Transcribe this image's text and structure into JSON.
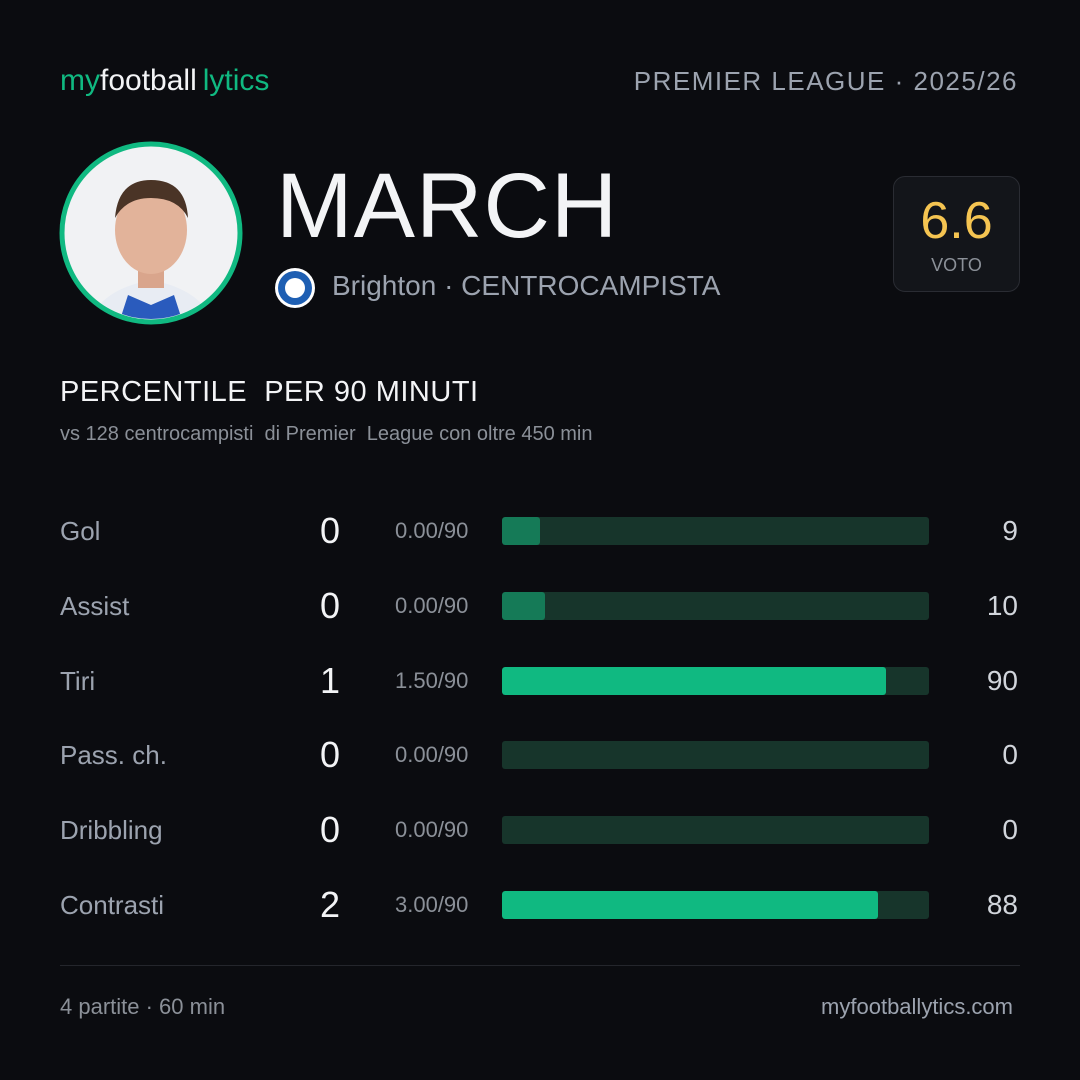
{
  "header": {
    "logo": [
      "my",
      "football",
      "lytics"
    ],
    "league": "PREMIER LEAGUE · 2025/26"
  },
  "player": {
    "name": "MARCH",
    "team": "Brighton",
    "role": "· CENTROCAMPISTA",
    "rating": "6.6",
    "rating_label": "VOTO"
  },
  "section": {
    "title": "PERCENTILE  PER 90 MINUTI",
    "subtitle": "vs 128 centrocampisti  di Premier  League con oltre 450 min"
  },
  "stats": [
    {
      "label": "Gol",
      "count": 0,
      "per90": "0.00/90",
      "percentile": 9,
      "color": "#157a57"
    },
    {
      "label": "Assist",
      "count": 0,
      "per90": "0.00/90",
      "percentile": 10,
      "color": "#157a57"
    },
    {
      "label": "Tiri",
      "count": 1,
      "per90": "1.50/90",
      "percentile": 90,
      "color": "#10b981"
    },
    {
      "label": "Pass. ch.",
      "count": 0,
      "per90": "0.00/90",
      "percentile": 0,
      "color": "#157a57"
    },
    {
      "label": "Dribbling",
      "count": 0,
      "per90": "0.00/90",
      "percentile": 0,
      "color": "#157a57"
    },
    {
      "label": "Contrasti",
      "count": 2,
      "per90": "3.00/90",
      "percentile": 88,
      "color": "#10b981"
    }
  ],
  "footer": {
    "left": "4 partite · 60 min",
    "right": "myfootballytics.com"
  }
}
